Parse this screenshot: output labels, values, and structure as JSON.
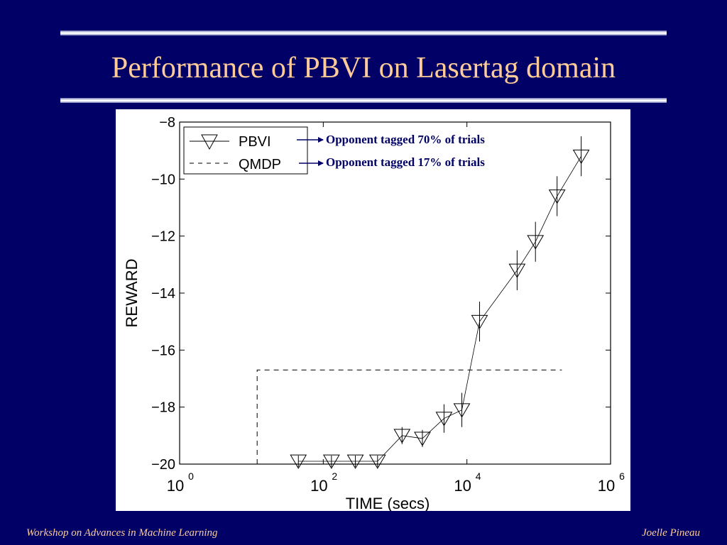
{
  "slide": {
    "title": "Performance of PBVI on Lasertag domain",
    "footer_left": "Workshop on Advances in Machine Learning",
    "footer_right": "Joelle Pineau",
    "annotations": [
      "Opponent tagged 70% of trials",
      "Opponent tagged 17% of trials"
    ]
  },
  "colors": {
    "background": "#000066",
    "title": "#ffcc99",
    "rule": "#ffffff",
    "annotation_text": "#000066"
  },
  "chart_data": {
    "type": "line",
    "xscale": "log",
    "xlabel": "TIME (secs)",
    "ylabel": "REWARD",
    "xlim": [
      1,
      1000000
    ],
    "ylim": [
      -20,
      -8
    ],
    "xticks": [
      {
        "value": 1,
        "base": "10",
        "exp": "0"
      },
      {
        "value": 100,
        "base": "10",
        "exp": "2"
      },
      {
        "value": 10000,
        "base": "10",
        "exp": "4"
      },
      {
        "value": 1000000,
        "base": "10",
        "exp": "6"
      }
    ],
    "yticks": [
      -8,
      -10,
      -12,
      -14,
      -16,
      -18,
      -20
    ],
    "ytick_labels": [
      "−8",
      "−10",
      "−12",
      "−14",
      "−16",
      "−18",
      "−20"
    ],
    "legend_position": "top-left",
    "series": [
      {
        "name": "PBVI",
        "marker": "triangle-down",
        "x": [
          45,
          130,
          280,
          570,
          1250,
          2400,
          4800,
          8500,
          15000,
          50000,
          90000,
          180000,
          390000
        ],
        "y": [
          -19.9,
          -19.9,
          -19.9,
          -19.9,
          -19.0,
          -19.1,
          -18.4,
          -18.1,
          -15.0,
          -13.2,
          -12.2,
          -10.6,
          -9.2
        ],
        "err": [
          0.2,
          0.2,
          0.2,
          0.2,
          0.3,
          0.3,
          0.5,
          0.6,
          0.7,
          0.7,
          0.7,
          0.7,
          0.7
        ]
      },
      {
        "name": "QMDP",
        "style": "dashed",
        "x": [
          12,
          12,
          10000,
          210000
        ],
        "y": [
          -20,
          -16.7,
          -16.7,
          -16.7
        ]
      }
    ]
  }
}
